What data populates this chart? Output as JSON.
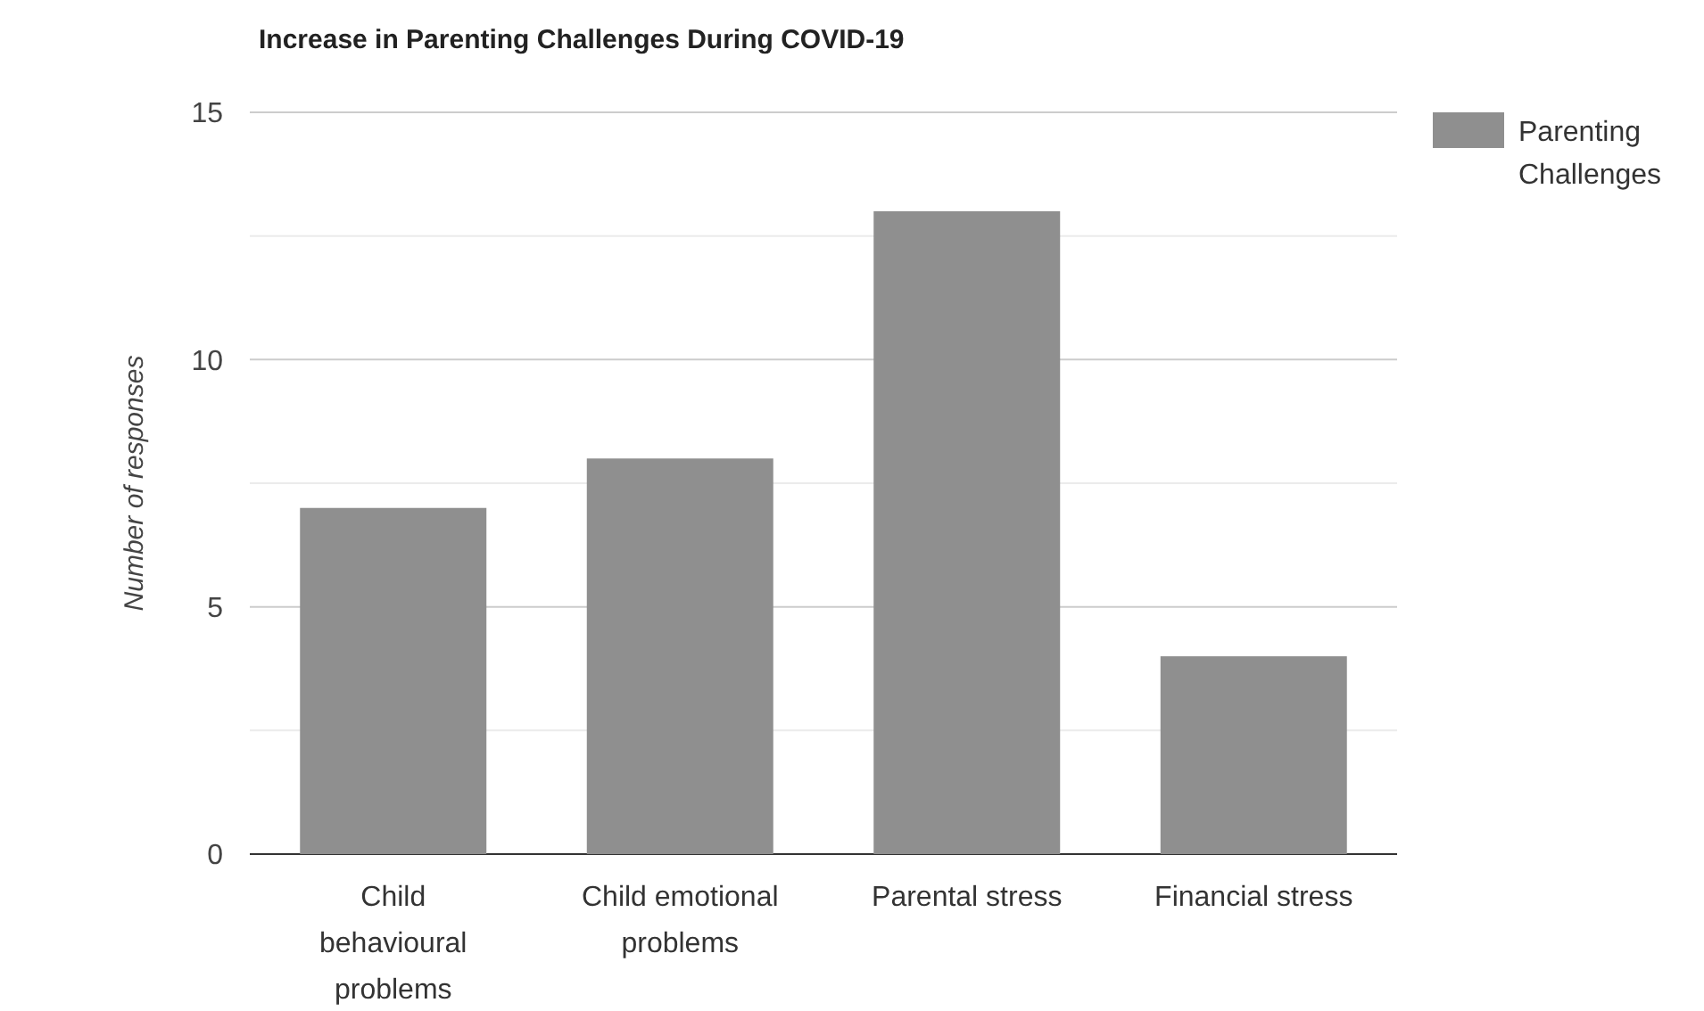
{
  "chart_data": {
    "type": "bar",
    "title": "Increase in Parenting Challenges During COVID-19",
    "ylabel": "Number of responses",
    "categories": [
      "Child behavioural problems",
      "Child emotional problems",
      "Parental stress",
      "Financial stress"
    ],
    "series": [
      {
        "name": "Parenting Challenges",
        "color": "#8f8f8f",
        "values": [
          7,
          8,
          13,
          4
        ]
      }
    ],
    "ylim": [
      0,
      15
    ],
    "yticks": [
      0,
      {
        "value": 2.5,
        "label": null
      },
      5,
      {
        "value": 7.5,
        "label": null
      },
      10,
      {
        "value": 12.5,
        "label": null
      },
      15
    ],
    "grid": "y",
    "legend": "right"
  }
}
